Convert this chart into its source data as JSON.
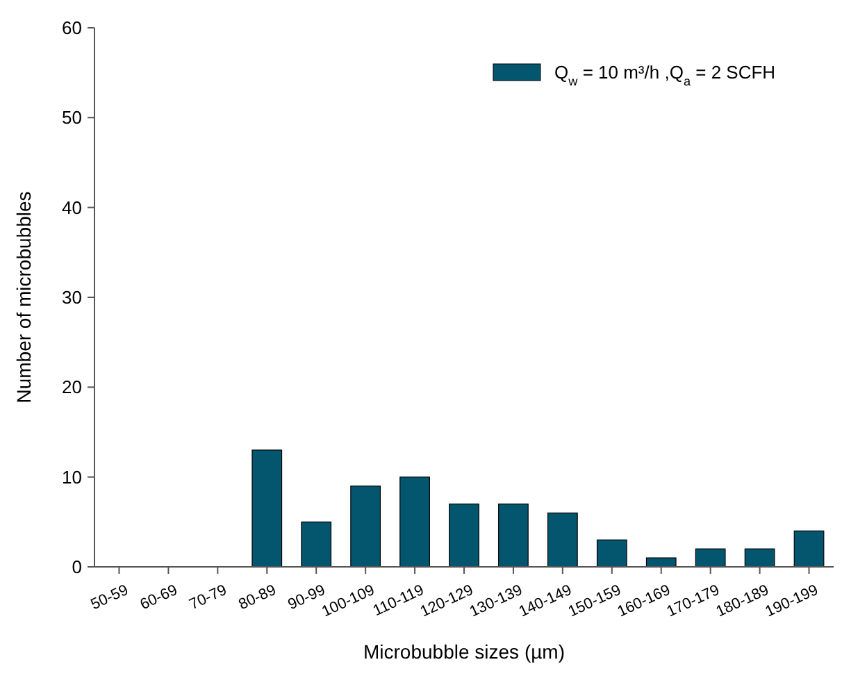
{
  "chart_data": {
    "type": "bar",
    "xlabel": "Microbubble sizes (µm)",
    "ylabel": "Number of microbubbles",
    "categories": [
      "50-59",
      "60-69",
      "70-79",
      "80-89",
      "90-99",
      "100-109",
      "110-119",
      "120-129",
      "130-139",
      "140-149",
      "150-159",
      "160-169",
      "170-179",
      "180-189",
      "190-199"
    ],
    "series": [
      {
        "name": "Q$_{w}$ = 10 m³/h ,Q$_{a}$ = 2 SCFH",
        "color": "#04566f",
        "values": [
          0,
          0,
          0,
          13,
          5,
          9,
          10,
          7,
          7,
          6,
          3,
          1,
          2,
          2,
          4
        ]
      }
    ],
    "ylim": [
      0,
      60
    ],
    "yticks": [
      0,
      10,
      20,
      30,
      40,
      50,
      60
    ],
    "grid": false,
    "legend": "top right"
  }
}
